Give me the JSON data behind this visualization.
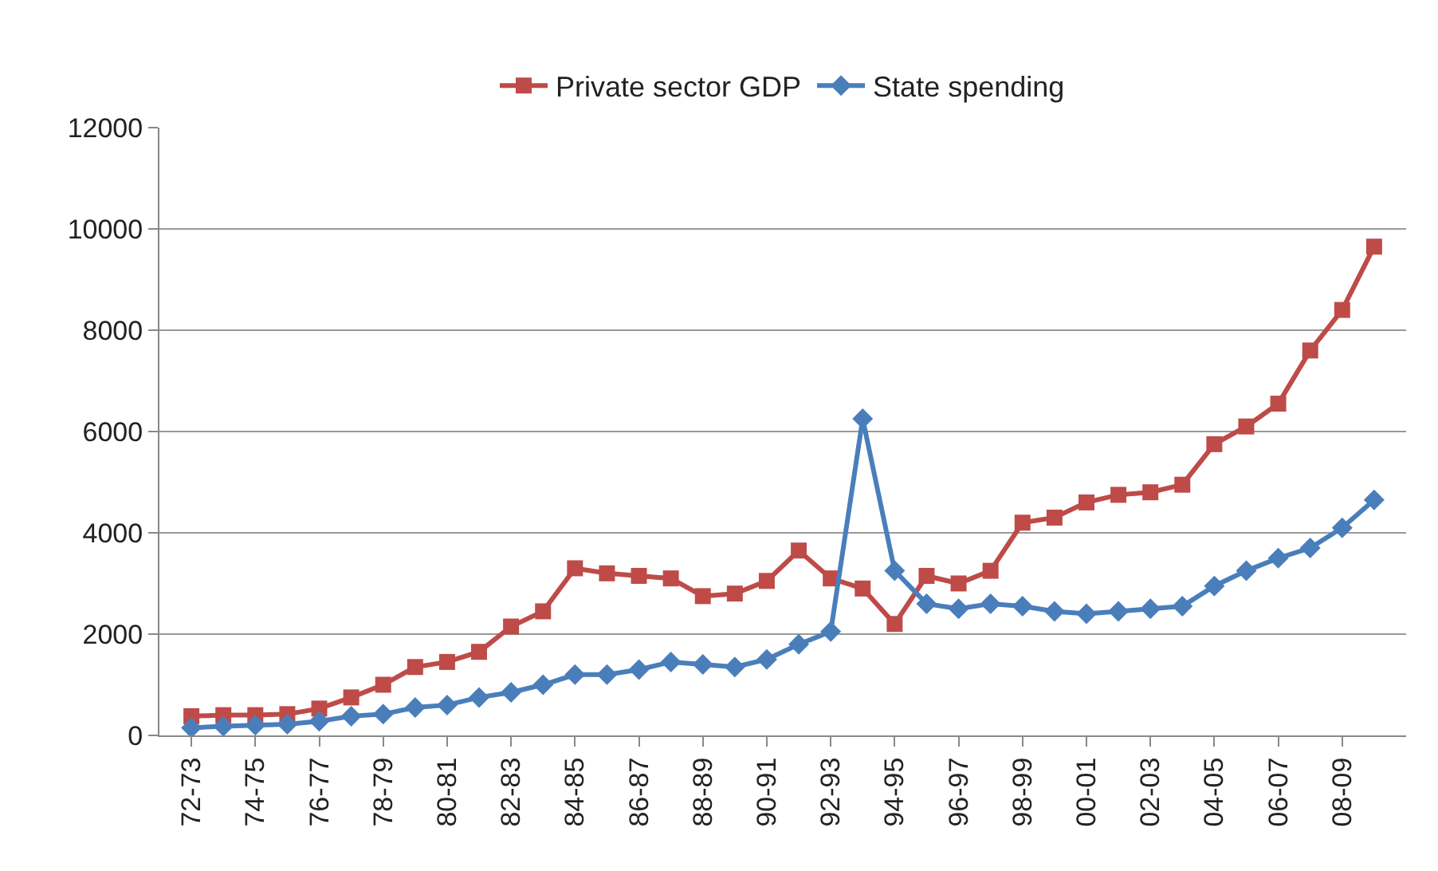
{
  "chart_data": {
    "type": "line",
    "categories": [
      "72-73",
      null,
      "74-75",
      null,
      "76-77",
      null,
      "78-79",
      null,
      "80-81",
      null,
      "82-83",
      null,
      "84-85",
      null,
      "86-87",
      null,
      "88-89",
      null,
      "90-91",
      null,
      "92-93",
      null,
      "94-95",
      null,
      "96-97",
      null,
      "98-99",
      null,
      "00-01",
      null,
      "02-03",
      null,
      "04-05",
      null,
      "06-07",
      null,
      "08-09",
      null
    ],
    "series": [
      {
        "name": "Private sector GDP",
        "color": "#be4b48",
        "marker": "square",
        "values": [
          380,
          400,
          400,
          420,
          530,
          750,
          1000,
          1350,
          1450,
          1650,
          2150,
          2450,
          3300,
          3200,
          3150,
          3100,
          2750,
          2800,
          3050,
          3650,
          3100,
          2900,
          2200,
          3150,
          3000,
          3250,
          4200,
          4300,
          4600,
          4750,
          4800,
          4950,
          5750,
          6100,
          6550,
          7600,
          8400,
          9650
        ]
      },
      {
        "name": "State spending",
        "color": "#4a7ebb",
        "marker": "diamond",
        "values": [
          150,
          180,
          200,
          220,
          280,
          380,
          420,
          550,
          600,
          750,
          850,
          1000,
          1200,
          1200,
          1300,
          1450,
          1400,
          1350,
          1500,
          1800,
          2050,
          6250,
          3250,
          2600,
          2500,
          2600,
          2550,
          2450,
          2400,
          2450,
          2500,
          2550,
          2950,
          3250,
          3500,
          3700,
          4100,
          4650
        ]
      }
    ],
    "ylim": [
      0,
      12000
    ],
    "yticks": [
      0,
      2000,
      4000,
      6000,
      8000,
      10000,
      12000
    ],
    "grid": "y",
    "legend": "top",
    "line_style": "solid"
  }
}
